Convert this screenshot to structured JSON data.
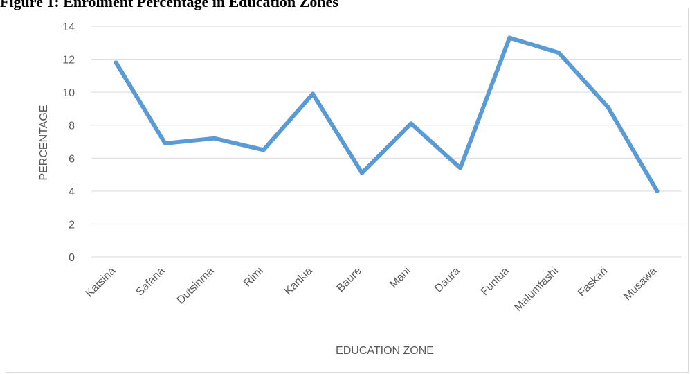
{
  "figure_title": "Figure 1: Enrolment Percentage in Education Zones",
  "chart_data": {
    "type": "line",
    "title": "Figure 1: Enrolment Percentage in Education Zones",
    "xlabel": "EDUCATION ZONE",
    "ylabel": "PERCENTAGE",
    "ylim": [
      0,
      14
    ],
    "yticks": [
      "0",
      "2",
      "4",
      "6",
      "8",
      "10",
      "12",
      "14"
    ],
    "grid": true,
    "legend": "none",
    "categories": [
      "Katsina",
      "Safana",
      "Dutsinma",
      "Rimi",
      "Kankia",
      "Baure",
      "Mani",
      "Daura",
      "Funtua",
      "Malumfashi",
      "Faskari",
      "Musawa"
    ],
    "series": [
      {
        "values": [
          11.8,
          6.9,
          7.2,
          6.5,
          9.9,
          5.1,
          8.1,
          5.4,
          13.3,
          12.4,
          9.1,
          4.0
        ],
        "color": "#5b9bd5"
      }
    ],
    "gridline_color": "#d9d9d9"
  }
}
